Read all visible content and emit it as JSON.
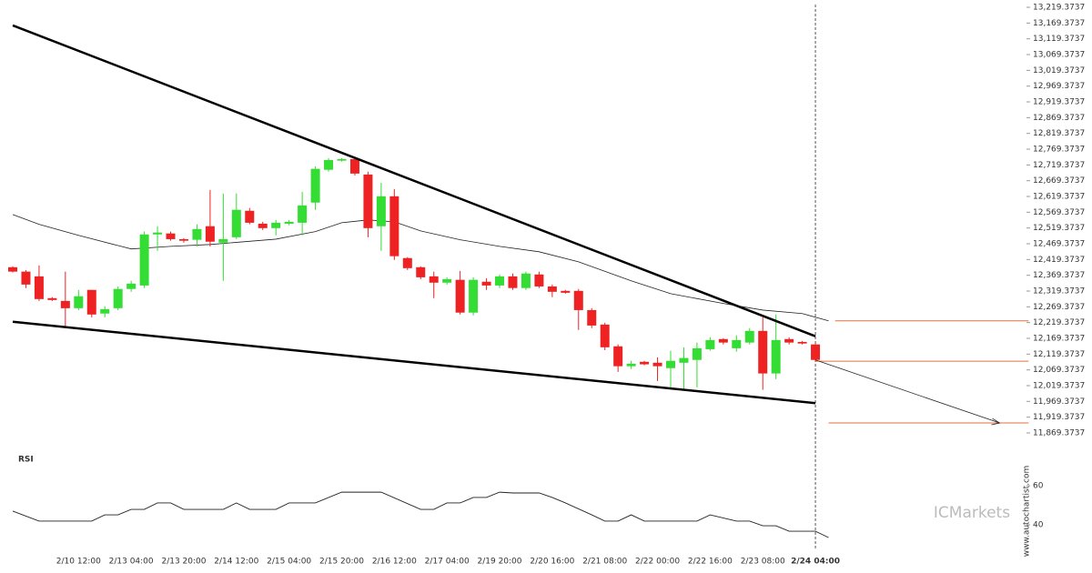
{
  "chart_data": {
    "type": "candlestick",
    "categories": [
      null,
      null,
      null,
      null,
      null,
      "2/10 12:00",
      null,
      null,
      null,
      "2/13 04:00",
      null,
      null,
      null,
      "2/13 20:00",
      null,
      null,
      null,
      "2/14 12:00",
      null,
      null,
      null,
      "2/15 04:00",
      null,
      null,
      null,
      "2/15 20:00",
      null,
      null,
      null,
      "2/16 12:00",
      null,
      null,
      null,
      "2/17 04:00",
      null,
      null,
      null,
      "2/19 20:00",
      null,
      null,
      null,
      "2/20 16:00",
      null,
      null,
      null,
      "2/21 08:00",
      null,
      null,
      null,
      "2/22 00:00",
      null,
      null,
      null,
      "2/22 16:00",
      null,
      null,
      null,
      "2/23 08:00",
      null,
      null,
      null,
      "2/24 04:00"
    ],
    "ohlc": [
      [
        12395,
        12398,
        12378,
        12381
      ],
      [
        12381,
        12386,
        12329,
        12340
      ],
      [
        12366,
        12401,
        12288,
        12294
      ],
      [
        12297,
        12300,
        12288,
        12291
      ],
      [
        12288,
        12381,
        12207,
        12265
      ],
      [
        12265,
        12323,
        12259,
        12303
      ],
      [
        12323,
        12323,
        12236,
        12245
      ],
      [
        12248,
        12271,
        12236,
        12262
      ],
      [
        12265,
        12334,
        12259,
        12326
      ],
      [
        12326,
        12352,
        12317,
        12343
      ],
      [
        12337,
        12508,
        12329,
        12499
      ],
      [
        12499,
        12525,
        12447,
        12505
      ],
      [
        12502,
        12508,
        12479,
        12484
      ],
      [
        12484,
        12487,
        12473,
        12479
      ],
      [
        12482,
        12531,
        12461,
        12516
      ],
      [
        12525,
        12640,
        12461,
        12476
      ],
      [
        12473,
        12629,
        12352,
        12484
      ],
      [
        12490,
        12629,
        12484,
        12577
      ],
      [
        12574,
        12583,
        12531,
        12536
      ],
      [
        12533,
        12539,
        12513,
        12519
      ],
      [
        12519,
        12545,
        12496,
        12536
      ],
      [
        12533,
        12545,
        12528,
        12539
      ],
      [
        12536,
        12634,
        12496,
        12591
      ],
      [
        12600,
        12715,
        12577,
        12707
      ],
      [
        12704,
        12741,
        12698,
        12735
      ],
      [
        12733,
        12741,
        12730,
        12738
      ],
      [
        12738,
        12744,
        12686,
        12692
      ],
      [
        12689,
        12698,
        12490,
        12519
      ],
      [
        12525,
        12663,
        12447,
        12620
      ],
      [
        12620,
        12643,
        12418,
        12430
      ],
      [
        12424,
        12427,
        12386,
        12392
      ],
      [
        12395,
        12398,
        12357,
        12363
      ],
      [
        12366,
        12381,
        12297,
        12346
      ],
      [
        12346,
        12363,
        12340,
        12357
      ],
      [
        12355,
        12383,
        12245,
        12251
      ],
      [
        12251,
        12363,
        12242,
        12355
      ],
      [
        12349,
        12360,
        12323,
        12337
      ],
      [
        12337,
        12372,
        12329,
        12366
      ],
      [
        12366,
        12375,
        12323,
        12329
      ],
      [
        12329,
        12381,
        12323,
        12375
      ],
      [
        12372,
        12381,
        12329,
        12334
      ],
      [
        12334,
        12340,
        12300,
        12317
      ],
      [
        12320,
        12323,
        12311,
        12314
      ],
      [
        12320,
        12326,
        12196,
        12259
      ],
      [
        12259,
        12265,
        12202,
        12210
      ],
      [
        12213,
        12219,
        12132,
        12141
      ],
      [
        12144,
        12150,
        12063,
        12081
      ],
      [
        12081,
        12098,
        12072,
        12089
      ],
      [
        12095,
        12098,
        12084,
        12087
      ],
      [
        12092,
        12109,
        12034,
        12081
      ],
      [
        12075,
        12130,
        12011,
        12098
      ],
      [
        12092,
        12141,
        12006,
        12107
      ],
      [
        12101,
        12156,
        12014,
        12138
      ],
      [
        12135,
        12173,
        12130,
        12164
      ],
      [
        12167,
        12170,
        12150,
        12156
      ],
      [
        12138,
        12179,
        12127,
        12164
      ],
      [
        12156,
        12202,
        12150,
        12193
      ],
      [
        12193,
        12236,
        12006,
        12058
      ],
      [
        12058,
        12245,
        12040,
        12164
      ],
      [
        12167,
        12173,
        12150,
        12156
      ],
      [
        12158,
        12161,
        12150,
        12153
      ],
      [
        12150,
        12156,
        12095,
        12101
      ]
    ],
    "up_color": "#33dd33",
    "down_color": "#ee2222",
    "ylim": [
      11829,
      13242.5
    ],
    "yticks": [
      {
        "value": 13219.3737,
        "label": "13,219.3737"
      },
      {
        "value": 13169.3737,
        "label": "13,169.3737"
      },
      {
        "value": 13119.3737,
        "label": "13,119.3737"
      },
      {
        "value": 13069.3737,
        "label": "13,069.3737"
      },
      {
        "value": 13019.3737,
        "label": "13,019.3737"
      },
      {
        "value": 12969.3737,
        "label": "12,969.3737"
      },
      {
        "value": 12919.3737,
        "label": "12,919.3737"
      },
      {
        "value": 12869.3737,
        "label": "12,869.3737"
      },
      {
        "value": 12819.3737,
        "label": "12,819.3737"
      },
      {
        "value": 12769.3737,
        "label": "12,769.3737"
      },
      {
        "value": 12719.3737,
        "label": "12,719.3737"
      },
      {
        "value": 12669.3737,
        "label": "12,669.3737"
      },
      {
        "value": 12619.3737,
        "label": "12,619.3737"
      },
      {
        "value": 12569.3737,
        "label": "12,569.3737"
      },
      {
        "value": 12519.3737,
        "label": "12,519.3737"
      },
      {
        "value": 12469.3737,
        "label": "12,469.3737"
      },
      {
        "value": 12419.3737,
        "label": "12,419.3737"
      },
      {
        "value": 12369.3737,
        "label": "12,369.3737"
      },
      {
        "value": 12319.3737,
        "label": "12,319.3737"
      },
      {
        "value": 12269.3737,
        "label": "12,269.3737"
      },
      {
        "value": 12219.3737,
        "label": "12,219.3737"
      },
      {
        "value": 12169.3737,
        "label": "12,169.3737"
      },
      {
        "value": 12119.3737,
        "label": "12,119.3737"
      },
      {
        "value": 12069.3737,
        "label": "12,069.3737"
      },
      {
        "value": 12019.3737,
        "label": "12,019.3737"
      },
      {
        "value": 11969.3737,
        "label": "11,969.3737"
      },
      {
        "value": 11919.3737,
        "label": "11,919.3737"
      },
      {
        "value": 11869.3737,
        "label": "11,869.3737"
      }
    ],
    "moving_average": {
      "color": "#222222",
      "x": [
        0,
        2,
        5,
        9,
        12,
        15,
        20,
        23,
        25,
        27,
        29,
        31,
        34,
        37,
        40,
        43,
        47,
        50,
        54,
        57,
        60,
        62
      ],
      "values": [
        12562,
        12531,
        12496,
        12453,
        12461,
        12467,
        12484,
        12508,
        12536,
        12545,
        12539,
        12510,
        12482,
        12461,
        12444,
        12412,
        12352,
        12311,
        12280,
        12259,
        12248,
        12225
      ]
    },
    "pattern_lines": [
      {
        "x": [
          0,
          61
        ],
        "values": [
          13162,
          12176
        ]
      },
      {
        "x": [
          0,
          61
        ],
        "values": [
          12222,
          11964
        ]
      }
    ],
    "forecast": {
      "x": [
        61,
        75
      ],
      "values": [
        12101,
        11901
      ]
    },
    "levels": [
      {
        "x": [
          62.5,
          77.2
        ],
        "value": 12225
      },
      {
        "x": [
          61,
          77.2
        ],
        "value": 12097
      },
      {
        "x": [
          62,
          77.2
        ],
        "value": 11901
      }
    ],
    "level_color": "#e07040",
    "current_index": 61,
    "rsi": {
      "title": "RSI",
      "ylim": [
        29.3,
        68.4
      ],
      "yticks": [
        60,
        40
      ],
      "x": [
        0,
        2,
        6,
        7,
        8,
        9,
        10,
        11,
        12,
        13,
        16,
        17,
        18,
        20,
        21,
        23,
        25,
        28,
        31,
        32,
        33,
        34,
        35,
        36,
        37,
        38,
        40,
        41,
        42,
        44,
        45,
        46,
        47,
        48,
        52,
        53,
        55,
        56,
        57,
        58,
        59,
        61,
        62
      ],
      "values": [
        47,
        41.9,
        41.9,
        45.1,
        45.1,
        47.9,
        47.9,
        51.2,
        51.2,
        47.9,
        47.9,
        51.2,
        47.9,
        47.9,
        51.2,
        51.2,
        56.7,
        56.7,
        47.9,
        47.9,
        51.2,
        51.2,
        54,
        54,
        56.7,
        56.3,
        56.3,
        54,
        51.2,
        45.1,
        41.9,
        41.9,
        45.1,
        41.9,
        41.9,
        45.1,
        41.9,
        41.9,
        39.5,
        39.5,
        36.7,
        36.7,
        33.5
      ]
    },
    "watermark": "ICMarkets",
    "source": "www.autochartist.com"
  }
}
